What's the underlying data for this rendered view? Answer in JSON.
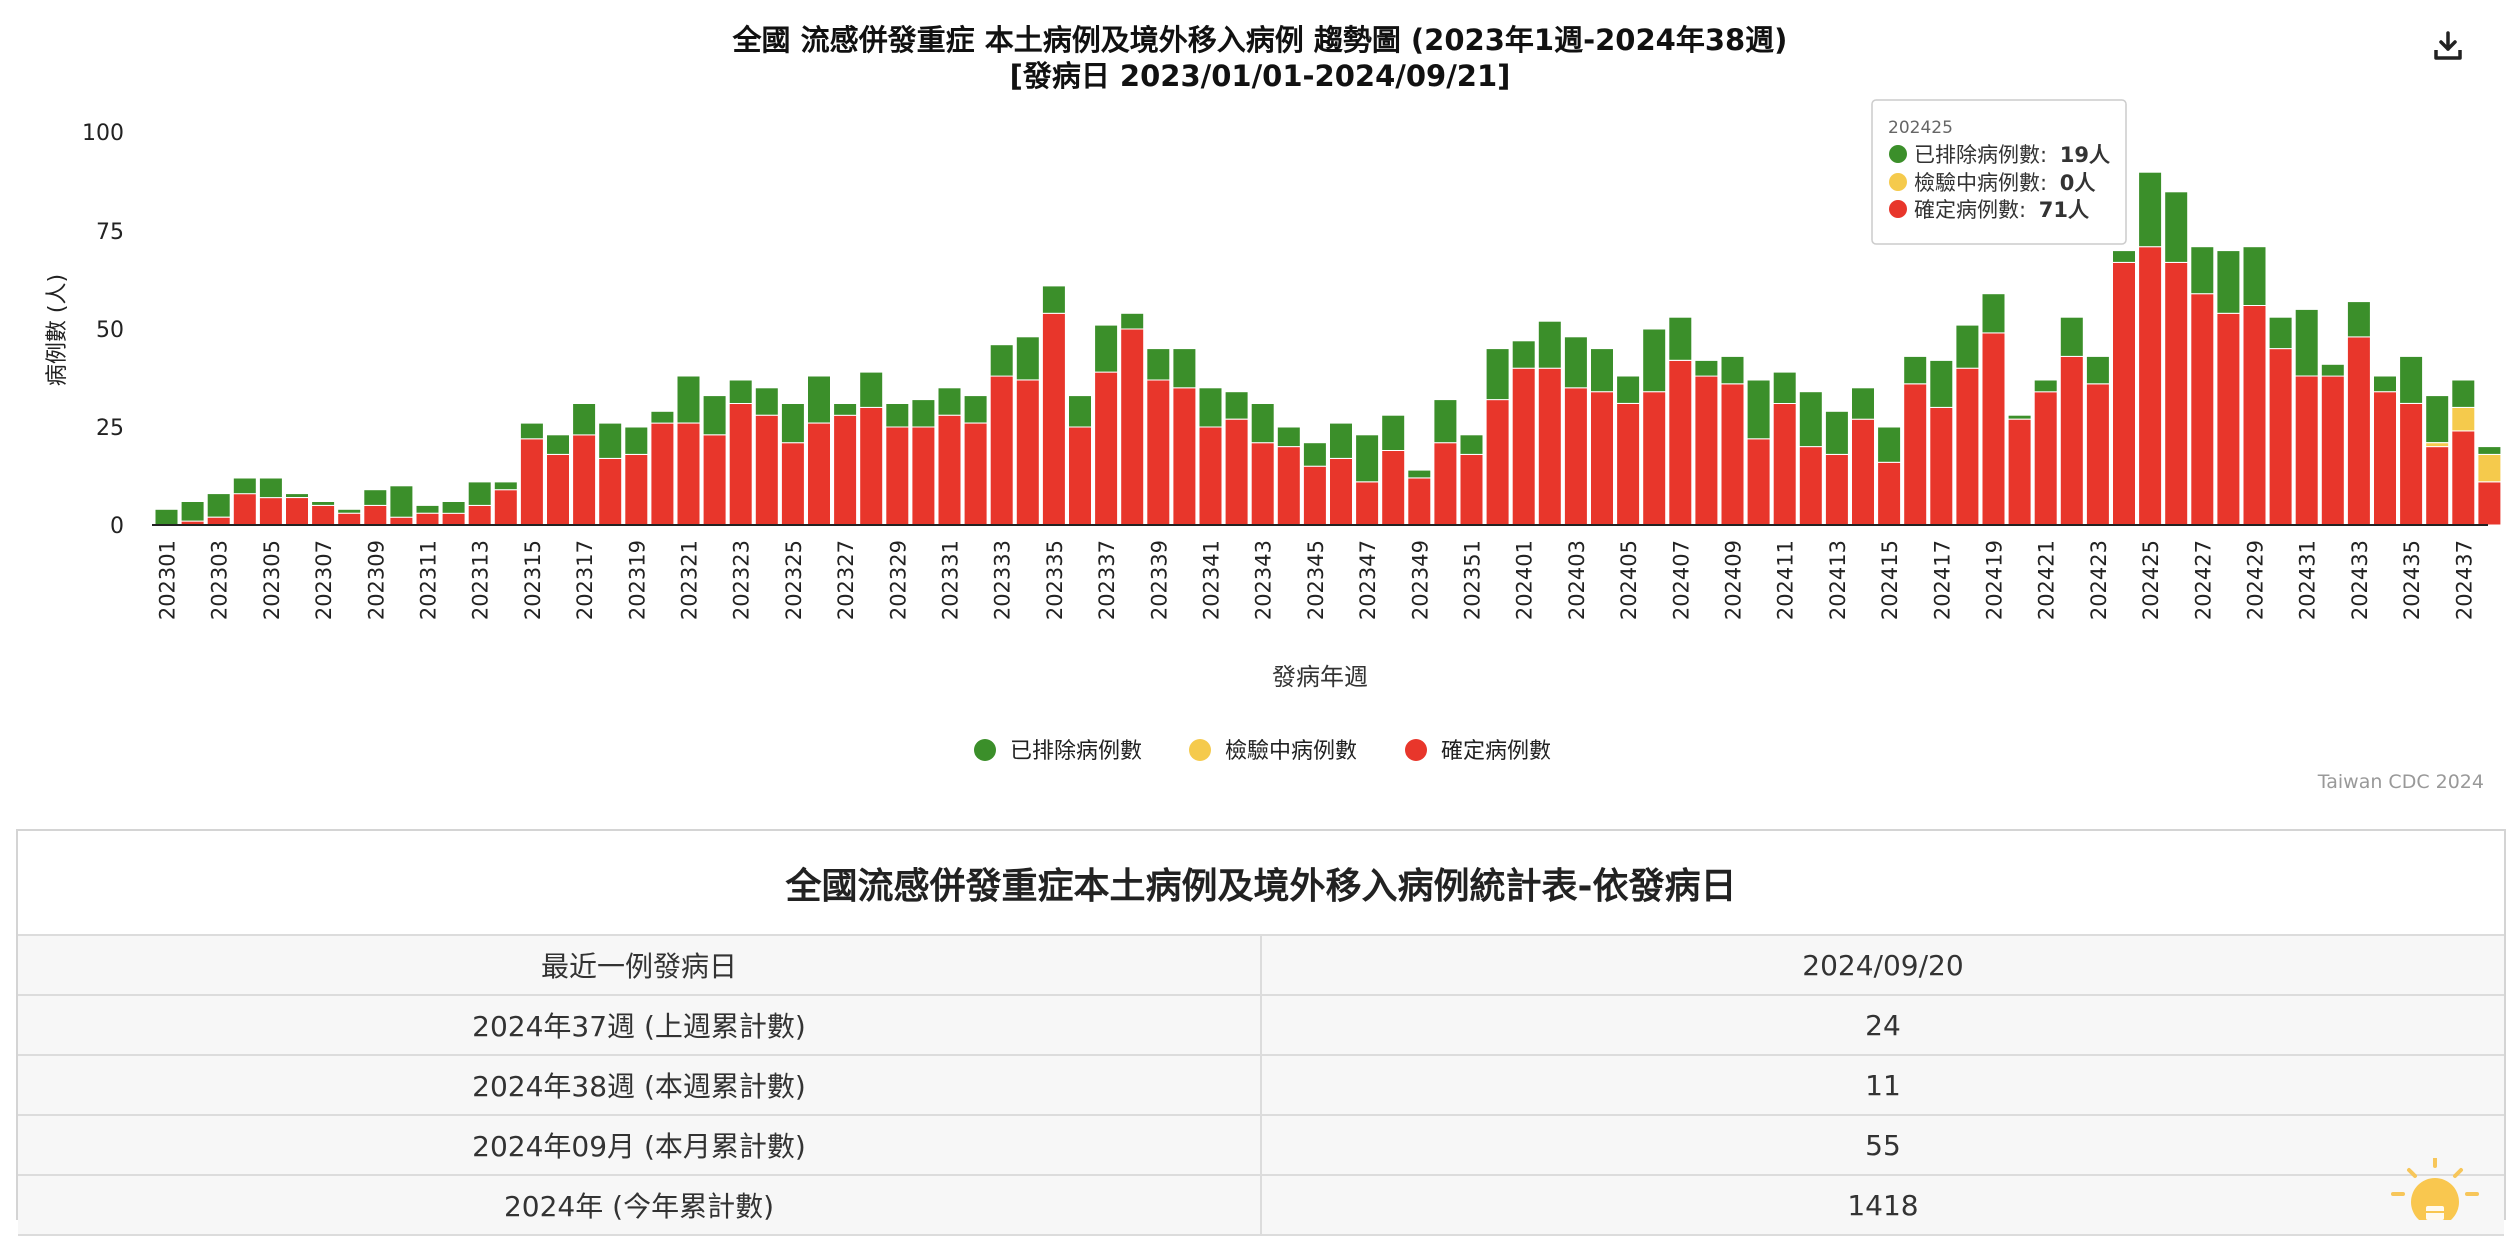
{
  "chart_data": {
    "type": "bar",
    "stacked": true,
    "title": "全國 流感併發重症 本土病例及境外移入病例 趨勢圖 (2023年1週-2024年38週)",
    "subtitle": "[發病日 2023/01/01-2024/09/21]",
    "xlabel": "發病年週",
    "ylabel": "病例數 (人)",
    "ylim": [
      0,
      100
    ],
    "yticks": [
      0,
      25,
      50,
      75,
      100
    ],
    "grid": false,
    "legend_position": "bottom",
    "categories": [
      "202301",
      "202302",
      "202303",
      "202304",
      "202305",
      "202306",
      "202307",
      "202308",
      "202309",
      "202310",
      "202311",
      "202312",
      "202313",
      "202314",
      "202315",
      "202316",
      "202317",
      "202318",
      "202319",
      "202320",
      "202321",
      "202322",
      "202323",
      "202324",
      "202325",
      "202326",
      "202327",
      "202328",
      "202329",
      "202330",
      "202331",
      "202332",
      "202333",
      "202334",
      "202335",
      "202336",
      "202337",
      "202338",
      "202339",
      "202340",
      "202341",
      "202342",
      "202343",
      "202344",
      "202345",
      "202346",
      "202347",
      "202348",
      "202349",
      "202350",
      "202351",
      "202352",
      "202401",
      "202402",
      "202403",
      "202404",
      "202405",
      "202406",
      "202407",
      "202408",
      "202409",
      "202410",
      "202411",
      "202412",
      "202413",
      "202414",
      "202415",
      "202416",
      "202417",
      "202418",
      "202419",
      "202420",
      "202421",
      "202422",
      "202423",
      "202424",
      "202425",
      "202426",
      "202427",
      "202428",
      "202429",
      "202430",
      "202431",
      "202432",
      "202433",
      "202434",
      "202435",
      "202436",
      "202437",
      "202438"
    ],
    "tick_labels": [
      "202301",
      "202303",
      "202305",
      "202307",
      "202309",
      "202311",
      "202313",
      "202315",
      "202317",
      "202319",
      "202321",
      "202323",
      "202325",
      "202327",
      "202329",
      "202331",
      "202333",
      "202335",
      "202337",
      "202339",
      "202341",
      "202343",
      "202345",
      "202347",
      "202349",
      "202351",
      "202401",
      "202403",
      "202405",
      "202407",
      "202409",
      "202411",
      "202413",
      "202415",
      "202417",
      "202419",
      "202421",
      "202423",
      "202425",
      "202427",
      "202429",
      "202431",
      "202433",
      "202435",
      "202437"
    ],
    "series": [
      {
        "name": "確定病例數",
        "color": "#e8362b",
        "values": [
          0,
          1,
          2,
          8,
          7,
          7,
          5,
          3,
          5,
          2,
          3,
          3,
          5,
          9,
          22,
          18,
          23,
          17,
          18,
          26,
          26,
          23,
          31,
          28,
          21,
          26,
          28,
          30,
          25,
          25,
          28,
          26,
          38,
          37,
          54,
          25,
          39,
          50,
          37,
          35,
          25,
          27,
          21,
          20,
          15,
          17,
          11,
          19,
          12,
          21,
          18,
          32,
          40,
          40,
          35,
          34,
          31,
          34,
          42,
          38,
          36,
          22,
          31,
          20,
          18,
          27,
          16,
          36,
          30,
          40,
          49,
          27,
          34,
          43,
          36,
          67,
          71,
          67,
          59,
          54,
          56,
          45,
          38,
          38,
          48,
          34,
          31,
          20,
          24,
          11
        ]
      },
      {
        "name": "檢驗中病例數",
        "color": "#f5ca4c",
        "values": [
          0,
          0,
          0,
          0,
          0,
          0,
          0,
          0,
          0,
          0,
          0,
          0,
          0,
          0,
          0,
          0,
          0,
          0,
          0,
          0,
          0,
          0,
          0,
          0,
          0,
          0,
          0,
          0,
          0,
          0,
          0,
          0,
          0,
          0,
          0,
          0,
          0,
          0,
          0,
          0,
          0,
          0,
          0,
          0,
          0,
          0,
          0,
          0,
          0,
          0,
          0,
          0,
          0,
          0,
          0,
          0,
          0,
          0,
          0,
          0,
          0,
          0,
          0,
          0,
          0,
          0,
          0,
          0,
          0,
          0,
          0,
          0,
          0,
          0,
          0,
          0,
          0,
          0,
          0,
          0,
          0,
          0,
          0,
          0,
          0,
          0,
          0,
          1,
          6,
          7
        ]
      },
      {
        "name": "已排除病例數",
        "color": "#3b8f2a",
        "values": [
          4,
          5,
          6,
          4,
          5,
          1,
          1,
          1,
          4,
          8,
          2,
          3,
          6,
          2,
          4,
          5,
          8,
          9,
          7,
          3,
          12,
          10,
          6,
          7,
          10,
          12,
          3,
          9,
          6,
          7,
          7,
          7,
          8,
          11,
          7,
          8,
          12,
          4,
          8,
          10,
          10,
          7,
          10,
          5,
          6,
          9,
          12,
          9,
          2,
          11,
          5,
          13,
          7,
          12,
          13,
          11,
          7,
          16,
          11,
          4,
          7,
          15,
          8,
          14,
          11,
          8,
          9,
          7,
          12,
          11,
          10,
          1,
          3,
          10,
          7,
          3,
          19,
          18,
          12,
          16,
          15,
          8,
          17,
          3,
          9,
          4,
          12,
          12,
          7,
          2
        ]
      }
    ]
  },
  "chart_labels": {
    "y_tick_labels": [
      "0",
      "25",
      "50",
      "75",
      "100"
    ]
  },
  "tooltip": {
    "week": "202425",
    "rows": [
      {
        "label": "已排除病例數:",
        "value": "19人",
        "color": "#3b8f2a"
      },
      {
        "label": "檢驗中病例數:",
        "value": "0人",
        "color": "#f5ca4c"
      },
      {
        "label": "確定病例數:",
        "value": "71人",
        "color": "#e8362b"
      }
    ]
  },
  "credits": "Taiwan CDC 2024",
  "icons": {
    "download": "download-icon",
    "bulb": "lightbulb-icon"
  },
  "stats_table": {
    "title": "全國流感併發重症本土病例及境外移入病例統計表-依發病日",
    "rows": [
      {
        "label": "最近一例發病日",
        "value": "2024/09/20"
      },
      {
        "label": "2024年37週 (上週累計數)",
        "value": "24"
      },
      {
        "label": "2024年38週 (本週累計數)",
        "value": "11"
      },
      {
        "label": "2024年09月 (本月累計數)",
        "value": "55"
      },
      {
        "label": "2024年 (今年累計數)",
        "value": "1418"
      }
    ]
  }
}
